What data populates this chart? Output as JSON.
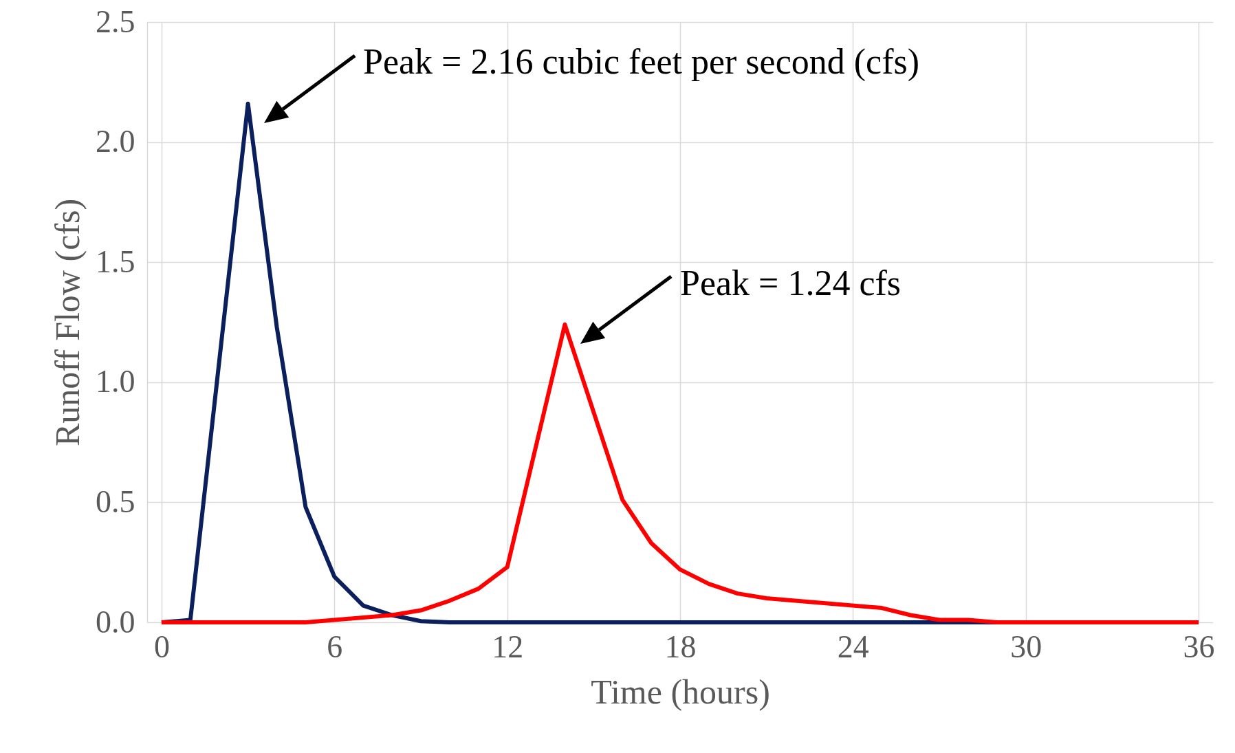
{
  "chart_data": {
    "type": "line",
    "xlabel": "Time (hours)",
    "ylabel": "Runoff Flow (cfs)",
    "xlim": [
      -0.5,
      36.5
    ],
    "xticks": [
      0,
      6,
      12,
      18,
      24,
      30,
      36
    ],
    "ylim": [
      0,
      2.5
    ],
    "yticks": [
      {
        "value": 0,
        "label": "0.0"
      },
      0.5,
      {
        "value": 1,
        "label": "1.0"
      },
      1.5,
      {
        "value": 2,
        "label": "2.0"
      },
      2.5
    ],
    "grid": true,
    "line_style": "solid",
    "marker": "none",
    "series": [
      {
        "color": "#0a1f5c",
        "x": [
          0,
          1,
          3,
          4,
          5,
          6,
          7,
          8,
          9,
          10,
          36
        ],
        "values": [
          0,
          0.01,
          2.16,
          1.23,
          0.48,
          0.19,
          0.07,
          0.03,
          0.005,
          0,
          0
        ]
      },
      {
        "color": "#ff0000",
        "x": [
          0,
          5,
          6,
          7,
          8,
          9,
          10,
          11,
          12,
          14,
          16,
          17,
          18,
          19,
          20,
          21,
          25,
          26,
          27,
          28,
          29,
          36
        ],
        "values": [
          0,
          0,
          0.01,
          0.02,
          0.03,
          0.05,
          0.09,
          0.14,
          0.23,
          1.24,
          0.51,
          0.33,
          0.22,
          0.16,
          0.12,
          0.1,
          0.06,
          0.03,
          0.01,
          0.01,
          0,
          0
        ]
      }
    ],
    "annotations": [
      "Peak = 2.16 cubic feet per second (cfs)",
      "Peak = 1.24 cfs"
    ]
  }
}
